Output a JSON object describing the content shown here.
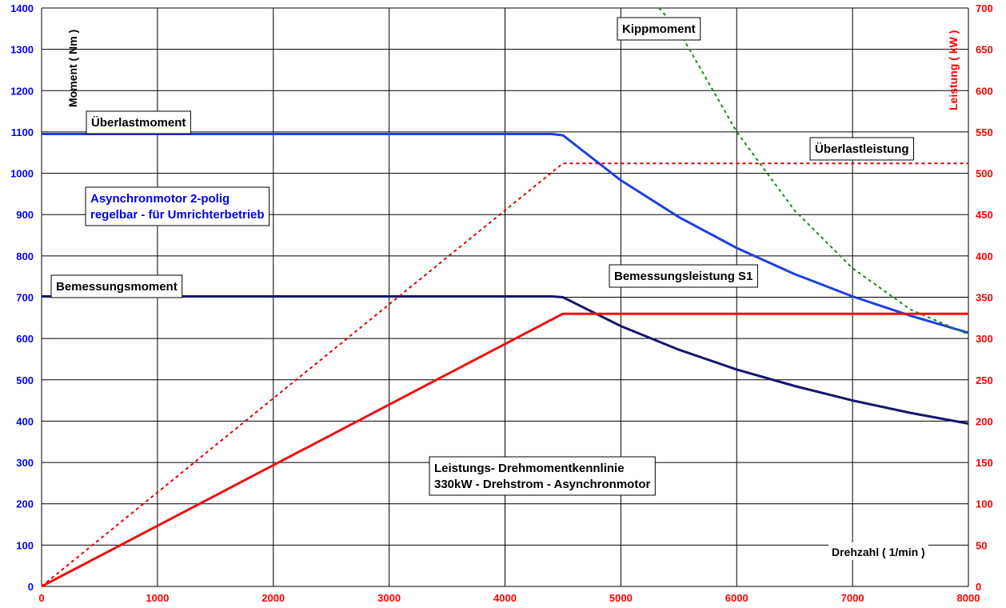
{
  "chart_data": {
    "type": "line",
    "x": {
      "label": "Drehzahl ( 1/min )",
      "range": [
        0,
        8000
      ],
      "ticks": [
        0,
        1000,
        2000,
        3000,
        4000,
        5000,
        6000,
        7000,
        8000
      ]
    },
    "y_left": {
      "label": "Moment ( Nm )",
      "range": [
        0,
        1400
      ],
      "ticks": [
        0,
        100,
        200,
        300,
        400,
        500,
        600,
        700,
        800,
        900,
        1000,
        1100,
        1200,
        1300,
        1400
      ]
    },
    "y_right": {
      "label": "Leistung ( kW )",
      "range": [
        0,
        700
      ],
      "ticks": [
        0,
        50,
        100,
        150,
        200,
        250,
        300,
        350,
        400,
        450,
        500,
        550,
        600,
        650,
        700
      ]
    },
    "grid": true,
    "colors": {
      "left_axis": "#0000ff",
      "right_axis": "#ff0000",
      "overload_torque": "#1f3fe0",
      "rated_torque": "#16166e",
      "rated_power": "#ee1111",
      "overload_power": "#dd0000",
      "breakdown_torque": "#1a8a1a"
    },
    "series": [
      {
        "key": "overload_torque",
        "axis": "left",
        "style": "solid",
        "x": [
          0,
          4400,
          4500,
          5000,
          5500,
          6000,
          6500,
          7000,
          7500,
          8000
        ],
        "y": [
          1095,
          1095,
          1092,
          983,
          894,
          819,
          756,
          702,
          655,
          614
        ]
      },
      {
        "key": "rated_torque",
        "axis": "left",
        "style": "solid",
        "x": [
          0,
          4400,
          4500,
          5000,
          5500,
          6000,
          6500,
          7000,
          7500,
          8000
        ],
        "y": [
          702,
          702,
          700,
          630,
          573,
          525,
          485,
          450,
          420,
          394
        ]
      },
      {
        "key": "breakdown_torque",
        "axis": "left",
        "style": "dotted",
        "x": [
          5330,
          5500,
          6000,
          6500,
          7000,
          7500,
          8000
        ],
        "y": [
          1400,
          1345,
          1100,
          910,
          770,
          670,
          610
        ]
      },
      {
        "key": "rated_power",
        "axis": "right",
        "style": "solid",
        "x": [
          0,
          4500,
          8000
        ],
        "y": [
          0,
          330,
          330
        ]
      },
      {
        "key": "overload_power",
        "axis": "right",
        "style": "dashed",
        "x": [
          0,
          4500,
          8000
        ],
        "y": [
          0,
          512,
          512
        ]
      }
    ],
    "annotations": [
      {
        "key": "kipp",
        "text": "Kippmoment"
      },
      {
        "key": "ueberlast_moment",
        "text": "Überlastmoment"
      },
      {
        "key": "ueberlast_leistung",
        "text": "Überlastleistung"
      },
      {
        "key": "bemessungsmoment",
        "text": "Bemessungsmoment"
      },
      {
        "key": "bemessungsleistung",
        "text": "Bemessungsleistung S1"
      },
      {
        "key": "motor_typ",
        "lines": [
          "Asynchronmotor 2-polig",
          "regelbar - für Umrichterbetrieb"
        ]
      },
      {
        "key": "kennlinie",
        "lines": [
          "Leistungs- Drehmomentkennlinie",
          "330kW - Drehstrom - Asynchronmotor"
        ]
      }
    ]
  }
}
